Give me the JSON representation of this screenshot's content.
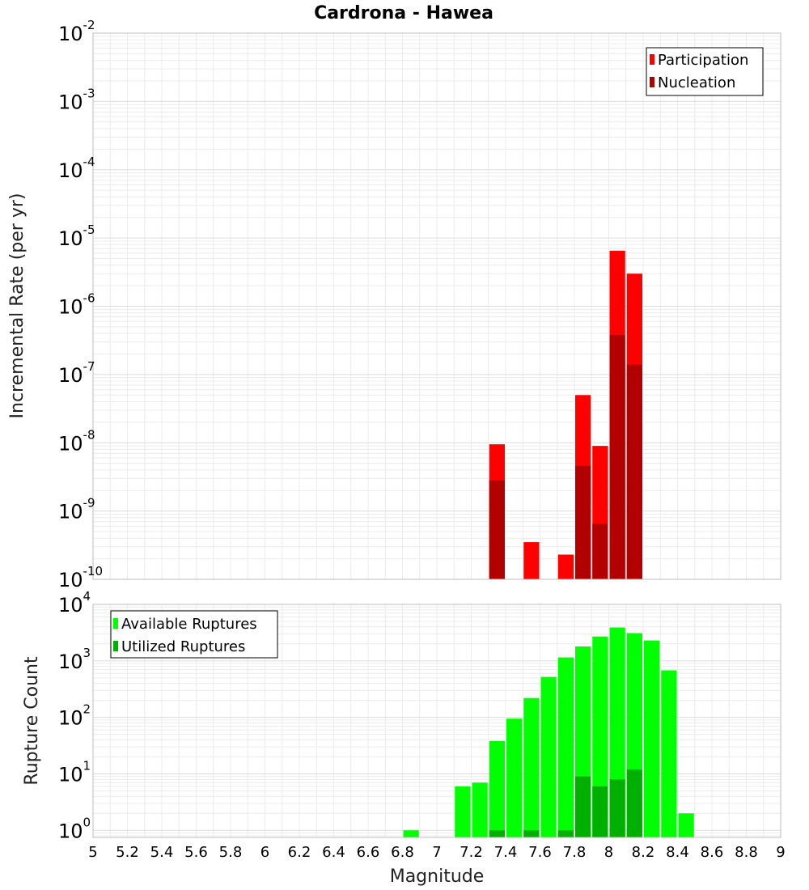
{
  "chart_data": [
    {
      "type": "bar",
      "title": "Cardrona - Hawea",
      "xlabel": "Magnitude",
      "ylabel": "Incremental Rate (per yr)",
      "yscale": "log",
      "ylim": [
        1e-10,
        0.01
      ],
      "xlim": [
        5,
        9
      ],
      "grid": true,
      "legend_position": "top-right",
      "bin_width": 0.1,
      "x": [
        7.35,
        7.55,
        7.75,
        7.85,
        7.95,
        8.05,
        8.15
      ],
      "series": [
        {
          "name": "Participation",
          "color": "#ff0000",
          "values": [
            9.5e-09,
            3.5e-10,
            2.3e-10,
            5e-08,
            9e-09,
            6.5e-06,
            3e-06
          ]
        },
        {
          "name": "Nucleation",
          "color": "#b20000",
          "values": [
            2.8e-09,
            null,
            null,
            4.6e-09,
            6.5e-10,
            3.8e-07,
            1.4e-07
          ]
        }
      ]
    },
    {
      "type": "bar",
      "xlabel": "Magnitude",
      "ylabel": "Rupture Count",
      "yscale": "log",
      "ylim": [
        0.75,
        10000
      ],
      "xlim": [
        5,
        9
      ],
      "grid": true,
      "legend_position": "top-left",
      "bin_width": 0.1,
      "x_ticks": [
        "5",
        "5.2",
        "5.4",
        "5.6",
        "5.8",
        "6",
        "6.2",
        "6.4",
        "6.6",
        "6.8",
        "7",
        "7.2",
        "7.4",
        "7.6",
        "7.8",
        "8",
        "8.2",
        "8.4",
        "8.6",
        "8.8",
        "9"
      ],
      "x": [
        6.85,
        7.15,
        7.25,
        7.35,
        7.45,
        7.55,
        7.65,
        7.75,
        7.85,
        7.95,
        8.05,
        8.15,
        8.25,
        8.35,
        8.45
      ],
      "series": [
        {
          "name": "Available Ruptures",
          "color": "#00ff00",
          "values": [
            1,
            6,
            7,
            38,
            95,
            220,
            520,
            1150,
            1800,
            2700,
            3900,
            3100,
            2300,
            680,
            2
          ]
        },
        {
          "name": "Utilized Ruptures",
          "color": "#00b000",
          "values": [
            null,
            null,
            null,
            1,
            null,
            1,
            null,
            1,
            9,
            6,
            8,
            12,
            null,
            null,
            null
          ]
        }
      ]
    }
  ]
}
